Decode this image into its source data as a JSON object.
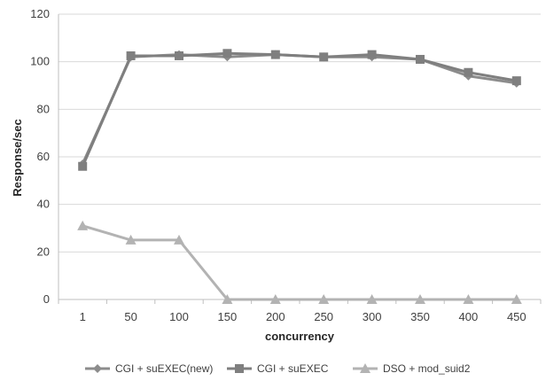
{
  "chart_data": {
    "type": "line",
    "title": "",
    "xlabel": "concurrency",
    "ylabel": "Response/sec",
    "categories": [
      "1",
      "50",
      "100",
      "150",
      "200",
      "250",
      "300",
      "350",
      "400",
      "450"
    ],
    "ylim": [
      0,
      120
    ],
    "yticks": [
      0,
      20,
      40,
      60,
      80,
      100,
      120
    ],
    "grid": "horizontal",
    "legend_position": "bottom",
    "series": [
      {
        "name": "CGI + suEXEC(new)",
        "marker": "diamond",
        "color": "#8c8c8c",
        "values": [
          57,
          102,
          103,
          102,
          103,
          102,
          102,
          101,
          94,
          91
        ]
      },
      {
        "name": "CGI + suEXEC",
        "marker": "square",
        "color": "#7f7f7f",
        "values": [
          56,
          102.5,
          102.5,
          103.5,
          103,
          102,
          103,
          101,
          95.5,
          92
        ]
      },
      {
        "name": "DSO + mod_suid2",
        "marker": "triangle",
        "color": "#b3b3b3",
        "values": [
          31,
          25,
          25,
          0,
          0,
          0,
          0,
          0,
          0,
          0
        ]
      }
    ]
  }
}
